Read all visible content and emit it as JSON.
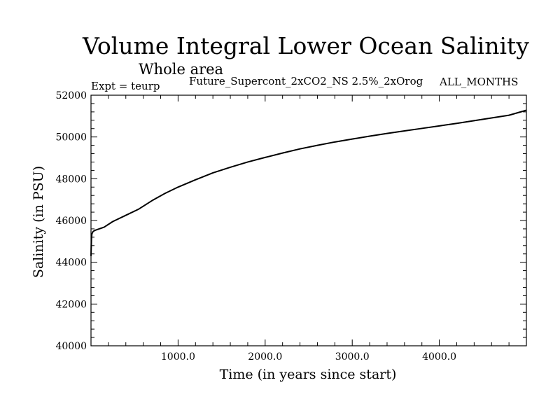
{
  "chart_data": {
    "type": "line",
    "title": "Volume Integral Lower Ocean Salinity",
    "subtitle": "Whole area",
    "experiment_label": "Expt = teurp",
    "run_label": "Future_Supercont_2xCO2_NS 2.5%_2xOrog",
    "months_label": "ALL_MONTHS",
    "xlabel": "Time (in years since start)",
    "ylabel": "Salinity (in PSU)",
    "xlim": [
      0,
      5000
    ],
    "ylim": [
      40000,
      52000
    ],
    "x_ticks": [
      1000,
      2000,
      3000,
      4000
    ],
    "x_tick_labels": [
      "1000.0",
      "2000.0",
      "3000.0",
      "4000.0"
    ],
    "y_ticks": [
      40000,
      42000,
      44000,
      46000,
      48000,
      50000,
      52000
    ],
    "y_tick_labels": [
      "40000",
      "42000",
      "44000",
      "46000",
      "48000",
      "50000",
      "52000"
    ],
    "grid": false,
    "series": [
      {
        "color": "#000000",
        "x": [
          0,
          5,
          10,
          20,
          40,
          80,
          150,
          250,
          400,
          550,
          700,
          850,
          1000,
          1200,
          1400,
          1600,
          1800,
          2000,
          2200,
          2400,
          2600,
          2800,
          3000,
          3200,
          3400,
          3600,
          3800,
          4000,
          4200,
          4400,
          4600,
          4800,
          5000
        ],
        "y": [
          44300,
          45100,
          45350,
          45450,
          45520,
          45580,
          45680,
          45950,
          46250,
          46550,
          46950,
          47300,
          47600,
          47950,
          48280,
          48550,
          48800,
          49020,
          49230,
          49430,
          49600,
          49760,
          49900,
          50040,
          50170,
          50290,
          50410,
          50530,
          50650,
          50780,
          50910,
          51040,
          51280
        ]
      }
    ]
  }
}
